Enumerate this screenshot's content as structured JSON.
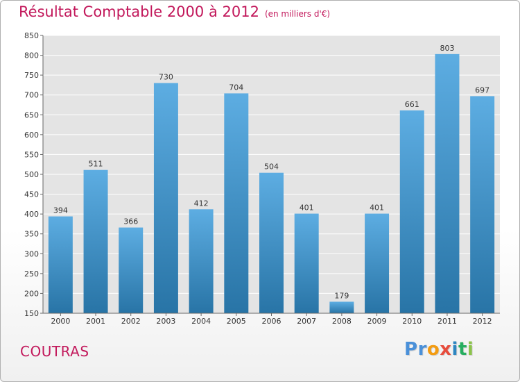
{
  "header": {
    "title": "Résultat Comptable 2000 à 2012",
    "subtitle": "(en milliers d'€)"
  },
  "footer": {
    "town": "COUTRAS",
    "brand": "Proxiti",
    "brand_letters": [
      {
        "ch": "P",
        "color": "#4a90d9"
      },
      {
        "ch": "r",
        "color": "#4a90d9"
      },
      {
        "ch": "o",
        "color": "#f39c12"
      },
      {
        "ch": "x",
        "color": "#e74c3c"
      },
      {
        "ch": "i",
        "color": "#2e86c1"
      },
      {
        "ch": "t",
        "color": "#27ae60"
      },
      {
        "ch": "i",
        "color": "#8bc34a"
      }
    ]
  },
  "colors": {
    "accent_text": "#c2185b",
    "bar_light": "#5dade2",
    "bar_dark": "#2874a6",
    "plot_bg": "#e4e4e4",
    "grid": "#ffffff"
  },
  "chart_data": {
    "type": "bar",
    "title": "Résultat Comptable 2000 à 2012",
    "subtitle": "(en milliers d'€)",
    "categories": [
      "2000",
      "2001",
      "2002",
      "2003",
      "2004",
      "2005",
      "2006",
      "2007",
      "2008",
      "2009",
      "2010",
      "2011",
      "2012"
    ],
    "values": [
      394,
      511,
      366,
      730,
      412,
      704,
      504,
      401,
      179,
      401,
      661,
      803,
      697
    ],
    "ylim": [
      150,
      850
    ],
    "yticks": [
      150,
      200,
      250,
      300,
      350,
      400,
      450,
      500,
      550,
      600,
      650,
      700,
      750,
      800,
      850
    ],
    "grid": true,
    "xlabel": "",
    "ylabel": ""
  }
}
